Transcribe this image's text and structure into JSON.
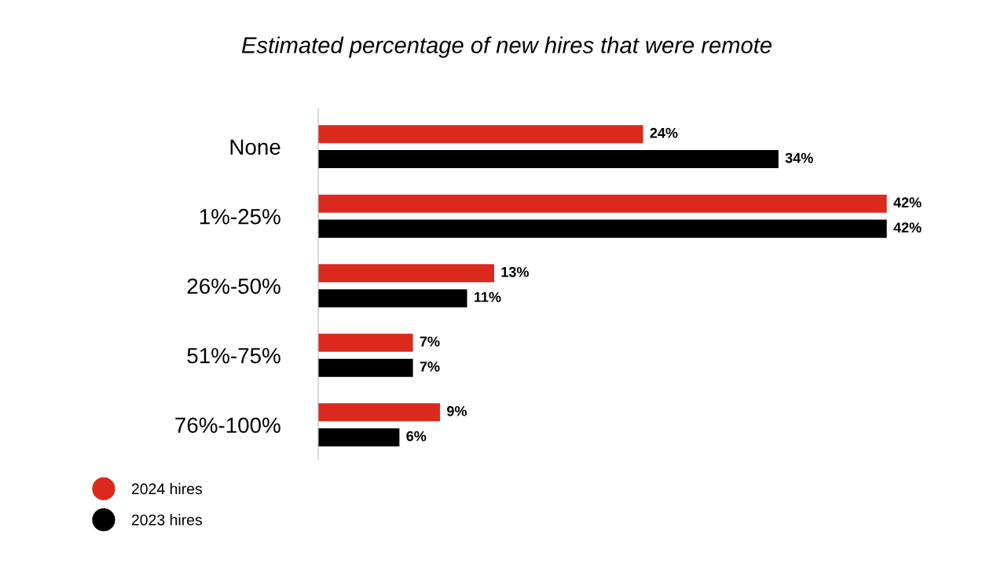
{
  "chart_data": {
    "type": "bar",
    "orientation": "horizontal",
    "title": "Estimated percentage of new hires that were remote",
    "categories": [
      "None",
      "1%-25%",
      "26%-50%",
      "51%-75%",
      "76%-100%"
    ],
    "series": [
      {
        "name": "2024 hires",
        "color": "#dc291e",
        "values": [
          24,
          42,
          13,
          7,
          9
        ],
        "value_labels": [
          "24%",
          "42%",
          "13%",
          "7%",
          "9%"
        ]
      },
      {
        "name": "2023 hires",
        "color": "#000000",
        "values": [
          34,
          42,
          11,
          7,
          6
        ],
        "value_labels": [
          "34%",
          "42%",
          "11%",
          "7%",
          "6%"
        ]
      }
    ],
    "legend": "bottom left",
    "grid": false
  }
}
